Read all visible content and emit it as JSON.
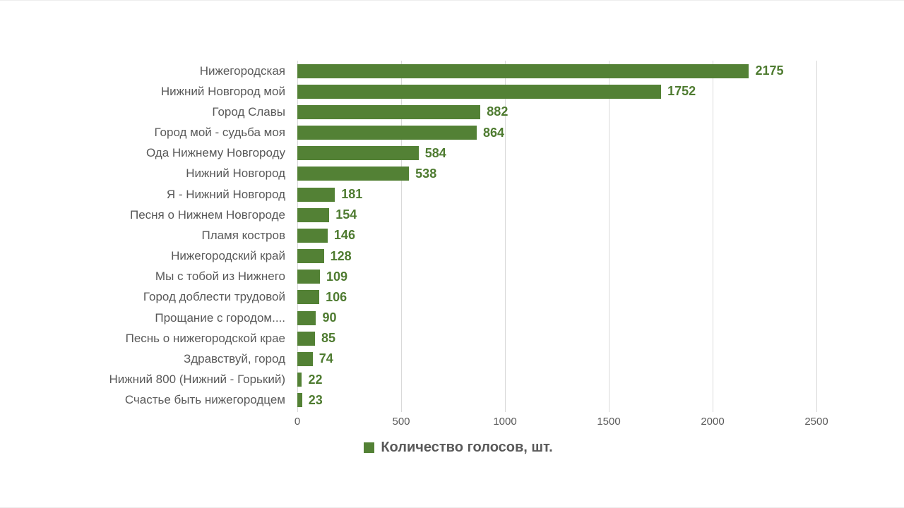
{
  "chart_data": {
    "type": "bar",
    "orientation": "horizontal",
    "title": "",
    "xlabel": "",
    "ylabel": "",
    "categories": [
      "Нижегородская",
      "Нижний Новгород мой",
      "Город Славы",
      "Город мой - судьба моя",
      "Ода Нижнему Новгороду",
      "Нижний Новгород",
      "Я - Нижний Новгород",
      "Песня о Нижнем Новгороде",
      "Пламя костров",
      "Нижегородский край",
      "Мы с тобой из Нижнего",
      "Город доблести трудовой",
      "Прощание с городом....",
      "Песнь о нижегородской крае",
      "Здравствуй, город",
      "Нижний 800 (Нижний - Горький)",
      "Счастье быть нижегородцем"
    ],
    "values": [
      2175,
      1752,
      882,
      864,
      584,
      538,
      181,
      154,
      146,
      128,
      109,
      106,
      90,
      85,
      74,
      22,
      23
    ],
    "series_name": "Количество голосов, шт.",
    "xlim": [
      0,
      2500
    ],
    "x_ticks": [
      0,
      500,
      1000,
      1500,
      2000,
      2500
    ],
    "grid": "vertical",
    "legend_position": "bottom",
    "data_labels": "outside-end",
    "colors": {
      "bar": "#538135",
      "value_label": "#4e7b30",
      "category_label": "#595959",
      "tick_label": "#595959",
      "legend_label": "#595959",
      "gridline": "#d9d9d9",
      "background": "#ffffff"
    }
  },
  "legend": {
    "label": "Количество голосов, шт."
  }
}
